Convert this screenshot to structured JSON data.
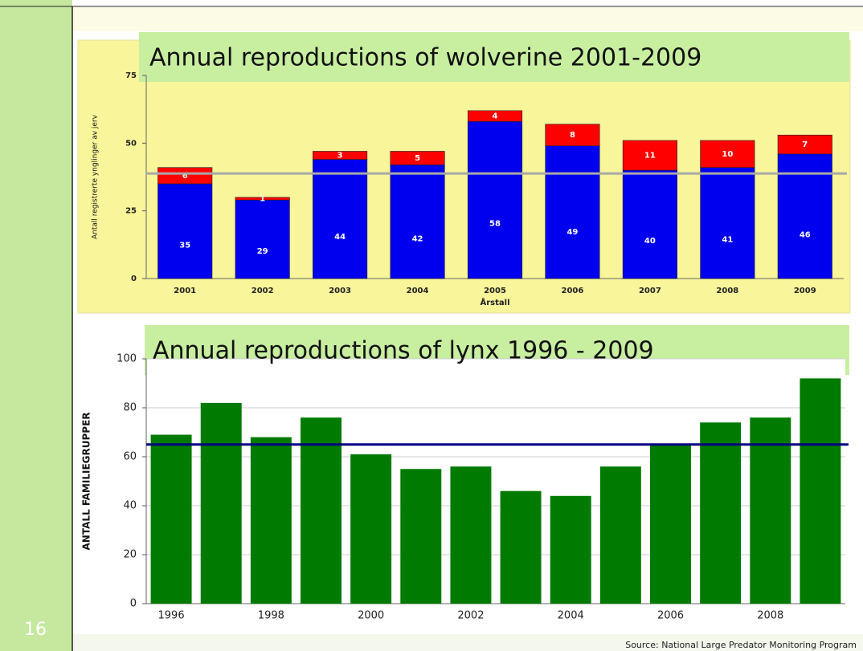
{
  "slide_number": "16",
  "source": "Source: National Large Predator Monitoring Program",
  "chart_data": [
    {
      "type": "stacked_bar",
      "title": "Annual reproductions of wolverine 2001-2009",
      "y_label": "Antall registrerte ynglinger av jerv",
      "x_label": "Årstall",
      "categories": [
        "2001",
        "2002",
        "2003",
        "2004",
        "2005",
        "2006",
        "2007",
        "2008",
        "2009"
      ],
      "series": [
        {
          "color": "#0000ee",
          "values": [
            35,
            29,
            44,
            42,
            58,
            49,
            40,
            41,
            46
          ]
        },
        {
          "color": "#ff0000",
          "values": [
            6,
            1,
            3,
            5,
            4,
            8,
            11,
            10,
            7
          ]
        }
      ],
      "reference_line": 38.8,
      "reference_color": "#a8a8a8",
      "ylim": [
        0,
        75
      ],
      "yticks": [
        0,
        25,
        50,
        75
      ],
      "grid": false
    },
    {
      "type": "bar",
      "title": "Annual reproductions of lynx 1996 - 2009",
      "y_label": "ANTALL FAMILIEGRUPPER",
      "categories": [
        "1996",
        null,
        "1998",
        null,
        "2000",
        null,
        "2002",
        null,
        "2004",
        null,
        "2006",
        null,
        "2008",
        null
      ],
      "values": [
        69,
        82,
        68,
        76,
        61,
        55,
        56,
        46,
        44,
        56,
        65,
        74,
        76,
        92
      ],
      "color": "#007a00",
      "reference_line": 65,
      "reference_color": "#000080",
      "ylim": [
        0,
        100
      ],
      "yticks": [
        0,
        20,
        40,
        60,
        80,
        100
      ],
      "grid": true
    }
  ]
}
